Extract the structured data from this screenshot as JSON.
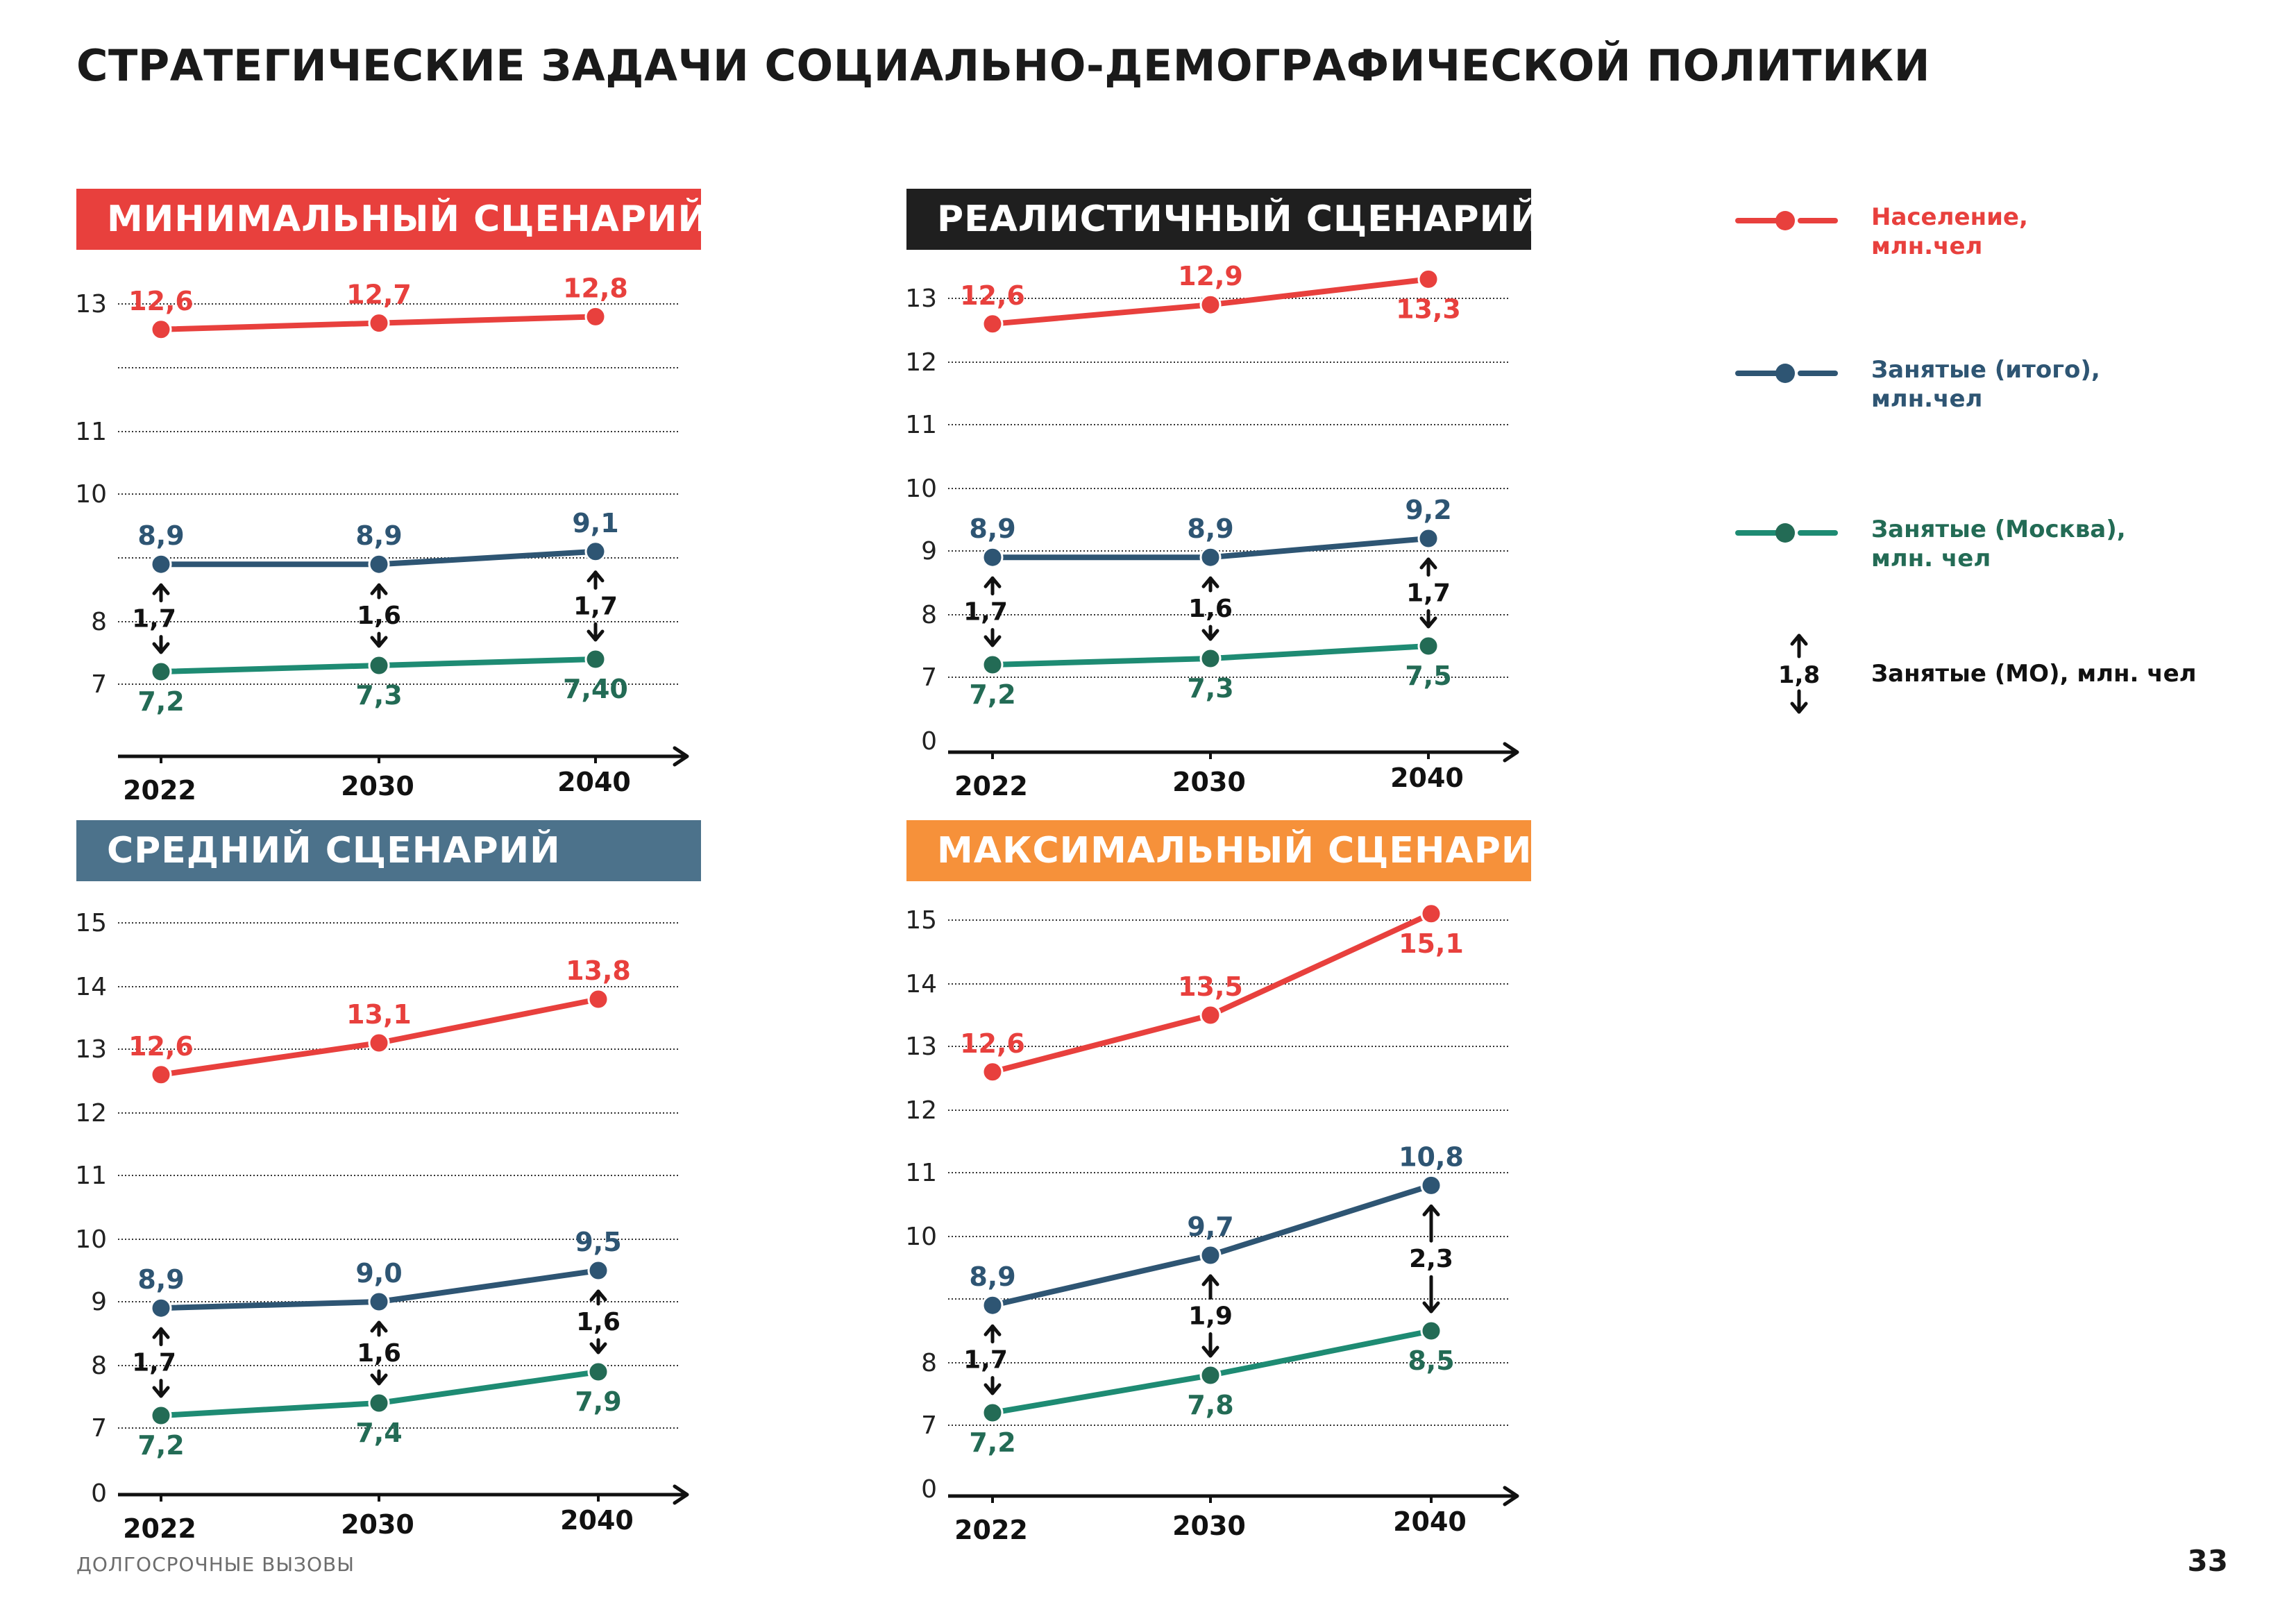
{
  "page": {
    "title": "СТРАТЕГИЧЕСКИЕ ЗАДАЧИ СОЦИАЛЬНО-ДЕМОГРАФИЧЕСКОЙ ПОЛИТИКИ",
    "footer": "ДОЛГОСРОЧНЫЕ ВЫЗОВЫ",
    "page_number": "33"
  },
  "colors": {
    "population": "#e8403d",
    "employed_total": "#2e5573",
    "employed_moscow": "#1e8b73",
    "employed_moscow_label": "#236b55",
    "arrow": "#111111",
    "grid": "#333333"
  },
  "legend": {
    "population": "Население,\nмлн.чел",
    "employed_total": "Занятые (итого),\nмлн.чел",
    "employed_moscow": "Занятые (Москва),\nмлн. чел",
    "employed_mo": "Занятые (МО), млн. чел",
    "employed_mo_sample": "1,8"
  },
  "chart_data": [
    {
      "type": "line",
      "banner": "МИНИМАЛЬНЫЙ СЦЕНАРИЙ",
      "banner_color": "#e8403d",
      "x": [
        "2022",
        "2030",
        "2040"
      ],
      "y_ticks": [
        "13",
        "",
        "11",
        "10",
        "",
        "8",
        "7"
      ],
      "series": [
        {
          "name": "Население, млн.чел",
          "values": [
            12.6,
            12.7,
            12.8
          ],
          "labels": [
            "12,6",
            "12,7",
            "12,8"
          ]
        },
        {
          "name": "Занятые (итого), млн.чел",
          "values": [
            8.9,
            8.9,
            9.1
          ],
          "labels": [
            "8,9",
            "8,9",
            "9,1"
          ]
        },
        {
          "name": "Занятые (Москва), млн. чел",
          "values": [
            7.2,
            7.3,
            7.4
          ],
          "labels": [
            "7,2",
            "7,3",
            "7,40"
          ]
        }
      ],
      "mo_labels": [
        "1,7",
        "1,6",
        "1,7"
      ]
    },
    {
      "type": "line",
      "banner": "РЕАЛИСТИЧНЫЙ СЦЕНАРИЙ",
      "banner_color": "#1f1f1f",
      "x": [
        "2022",
        "2030",
        "2040"
      ],
      "y_ticks": [
        "13",
        "12",
        "11",
        "10",
        "9",
        "8",
        "7",
        "0"
      ],
      "series": [
        {
          "name": "Население, млн.чел",
          "values": [
            12.6,
            12.9,
            13.3
          ],
          "labels": [
            "12,6",
            "12,9",
            "13,3"
          ]
        },
        {
          "name": "Занятые (итого), млн.чел",
          "values": [
            8.9,
            8.9,
            9.2
          ],
          "labels": [
            "8,9",
            "8,9",
            "9,2"
          ]
        },
        {
          "name": "Занятые (Москва), млн. чел",
          "values": [
            7.2,
            7.3,
            7.5
          ],
          "labels": [
            "7,2",
            "7,3",
            "7,5"
          ]
        }
      ],
      "mo_labels": [
        "1,7",
        "1,6",
        "1,7"
      ]
    },
    {
      "type": "line",
      "banner": "СРЕДНИЙ СЦЕНАРИЙ",
      "banner_color": "#4c728b",
      "x": [
        "2022",
        "2030",
        "2040"
      ],
      "y_ticks": [
        "15",
        "14",
        "13",
        "12",
        "11",
        "10",
        "9",
        "8",
        "7",
        "0"
      ],
      "series": [
        {
          "name": "Население, млн.чел",
          "values": [
            12.6,
            13.1,
            13.8
          ],
          "labels": [
            "12,6",
            "13,1",
            "13,8"
          ]
        },
        {
          "name": "Занятые (итого), млн.чел",
          "values": [
            8.9,
            9.0,
            9.5
          ],
          "labels": [
            "8,9",
            "9,0",
            "9,5"
          ]
        },
        {
          "name": "Занятые (Москва), млн. чел",
          "values": [
            7.2,
            7.4,
            7.9
          ],
          "labels": [
            "7,2",
            "7,4",
            "7,9"
          ]
        }
      ],
      "mo_labels": [
        "1,7",
        "1,6",
        "1,6"
      ]
    },
    {
      "type": "line",
      "banner": "МАКСИМАЛЬНЫЙ СЦЕНАРИЙ",
      "banner_color": "#f6913a",
      "x": [
        "2022",
        "2030",
        "2040"
      ],
      "y_ticks": [
        "15",
        "14",
        "13",
        "12",
        "11",
        "10",
        "",
        "8",
        "7",
        "0"
      ],
      "series": [
        {
          "name": "Население, млн.чел",
          "values": [
            12.6,
            13.5,
            15.1
          ],
          "labels": [
            "12,6",
            "13,5",
            "15,1"
          ]
        },
        {
          "name": "Занятые (итого), млн.чел",
          "values": [
            8.9,
            9.7,
            10.8
          ],
          "labels": [
            "8,9",
            "9,7",
            "10,8"
          ]
        },
        {
          "name": "Занятые (Москва), млн. чел",
          "values": [
            7.2,
            7.8,
            8.5
          ],
          "labels": [
            "7,2",
            "7,8",
            "8,5"
          ]
        }
      ],
      "mo_labels": [
        "1,7",
        "1,9",
        "2,3"
      ]
    }
  ]
}
